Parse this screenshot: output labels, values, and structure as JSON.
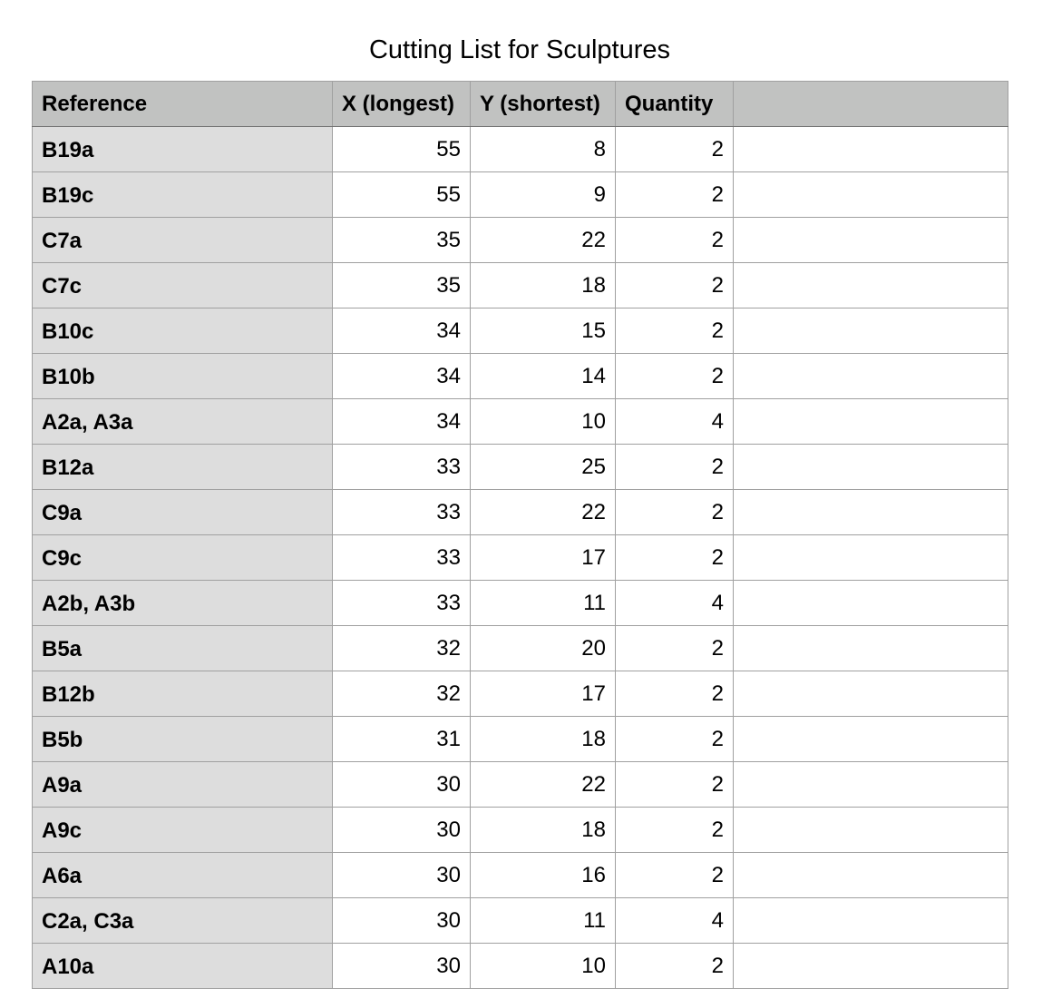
{
  "title": "Cutting List for Sculptures",
  "table": {
    "header": [
      "Reference",
      "X (longest)",
      "Y (shortest)",
      "Quantity"
    ],
    "rows": [
      [
        "B19a",
        55,
        8,
        2
      ],
      [
        "B19c",
        55,
        9,
        2
      ],
      [
        "C7a",
        35,
        22,
        2
      ],
      [
        "C7c",
        35,
        18,
        2
      ],
      [
        "B10c",
        34,
        15,
        2
      ],
      [
        "B10b",
        34,
        14,
        2
      ],
      [
        "A2a, A3a",
        34,
        10,
        4
      ],
      [
        "B12a",
        33,
        25,
        2
      ],
      [
        "C9a",
        33,
        22,
        2
      ],
      [
        "C9c",
        33,
        17,
        2
      ],
      [
        "A2b, A3b",
        33,
        11,
        4
      ],
      [
        "B5a",
        32,
        20,
        2
      ],
      [
        "B12b",
        32,
        17,
        2
      ],
      [
        "B5b",
        31,
        18,
        2
      ],
      [
        "A9a",
        30,
        22,
        2
      ],
      [
        "A9c",
        30,
        18,
        2
      ],
      [
        "A6a",
        30,
        16,
        2
      ],
      [
        "C2a, C3a",
        30,
        11,
        4
      ],
      [
        "A10a",
        30,
        10,
        2
      ]
    ]
  }
}
